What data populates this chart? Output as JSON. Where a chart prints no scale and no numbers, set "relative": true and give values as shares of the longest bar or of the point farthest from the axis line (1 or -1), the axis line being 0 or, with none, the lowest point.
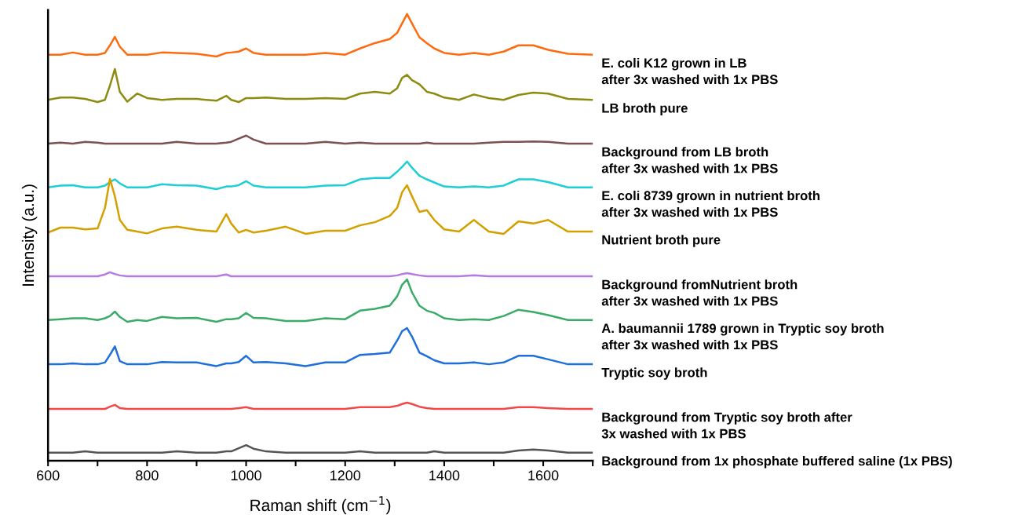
{
  "chart_data": {
    "type": "line",
    "relative": true,
    "xlabel": "Raman shift (cm$^{−1}$)",
    "ylabel": "Intensity (a.u.)",
    "xlim": [
      600,
      1700
    ],
    "xticks": [
      600,
      {
        "value": 700,
        "label": null
      },
      800,
      {
        "value": 900,
        "label": null
      },
      1000,
      {
        "value": 1100,
        "label": null
      },
      1200,
      {
        "value": 1300,
        "label": null
      },
      1400,
      {
        "value": 1500,
        "label": null
      },
      1600,
      {
        "value": 1700,
        "label": null
      }
    ],
    "x": [
      600,
      625,
      650,
      675,
      700,
      715,
      725,
      735,
      745,
      760,
      780,
      800,
      830,
      860,
      900,
      940,
      960,
      970,
      985,
      1000,
      1015,
      1040,
      1080,
      1120,
      1160,
      1200,
      1230,
      1260,
      1290,
      1305,
      1315,
      1325,
      1335,
      1350,
      1365,
      1380,
      1400,
      1430,
      1460,
      1490,
      1520,
      1550,
      1580,
      1610,
      1650,
      1700
    ],
    "series": [
      {
        "name": "E. coli K12 grown in LB\nafter 3x washed with 1x PBS",
        "color": "#ff6a0f",
        "values": [
          0.909,
          0.909,
          0.914,
          0.909,
          0.909,
          0.913,
          0.93,
          0.949,
          0.927,
          0.909,
          0.909,
          0.909,
          0.914,
          0.913,
          0.911,
          0.905,
          0.913,
          0.914,
          0.916,
          0.923,
          0.913,
          0.909,
          0.909,
          0.909,
          0.913,
          0.909,
          0.923,
          0.935,
          0.944,
          0.958,
          0.979,
          1.0,
          0.979,
          0.948,
          0.935,
          0.923,
          0.913,
          0.909,
          0.913,
          0.909,
          0.916,
          0.93,
          0.93,
          0.92,
          0.911,
          0.909
        ]
      },
      {
        "name": "LB broth pure",
        "color": "#8c8c10",
        "values": [
          0.808,
          0.813,
          0.813,
          0.81,
          0.803,
          0.808,
          0.84,
          0.877,
          0.826,
          0.804,
          0.822,
          0.812,
          0.808,
          0.81,
          0.81,
          0.806,
          0.817,
          0.808,
          0.803,
          0.812,
          0.812,
          0.813,
          0.81,
          0.81,
          0.812,
          0.81,
          0.822,
          0.826,
          0.822,
          0.834,
          0.857,
          0.864,
          0.852,
          0.843,
          0.826,
          0.822,
          0.813,
          0.808,
          0.82,
          0.812,
          0.808,
          0.819,
          0.824,
          0.822,
          0.81,
          0.808
        ]
      },
      {
        "name": "Background from LB broth\nafter 3x washed with 1x PBS",
        "color": "#7b5151",
        "values": [
          0.71,
          0.712,
          0.71,
          0.714,
          0.712,
          0.71,
          0.71,
          0.71,
          0.71,
          0.71,
          0.71,
          0.71,
          0.71,
          0.714,
          0.71,
          0.71,
          0.712,
          0.714,
          0.721,
          0.728,
          0.719,
          0.71,
          0.71,
          0.71,
          0.714,
          0.71,
          0.712,
          0.71,
          0.71,
          0.71,
          0.71,
          0.71,
          0.71,
          0.71,
          0.712,
          0.71,
          0.71,
          0.71,
          0.71,
          0.712,
          0.714,
          0.714,
          0.715,
          0.714,
          0.71,
          0.71
        ]
      },
      {
        "name": "E. coli 8739 grown in nutrient broth\nafter 3x washed with 1x PBS",
        "color": "#1ccfd6",
        "values": [
          0.612,
          0.616,
          0.617,
          0.612,
          0.612,
          0.616,
          0.624,
          0.63,
          0.621,
          0.612,
          0.612,
          0.612,
          0.619,
          0.617,
          0.616,
          0.608,
          0.614,
          0.614,
          0.617,
          0.626,
          0.616,
          0.612,
          0.612,
          0.612,
          0.616,
          0.617,
          0.63,
          0.633,
          0.633,
          0.647,
          0.658,
          0.67,
          0.656,
          0.638,
          0.63,
          0.623,
          0.614,
          0.612,
          0.614,
          0.612,
          0.616,
          0.63,
          0.63,
          0.624,
          0.612,
          0.612
        ]
      },
      {
        "name": "Nutrient broth pure",
        "color": "#d4a000",
        "values": [
          0.511,
          0.522,
          0.522,
          0.518,
          0.52,
          0.566,
          0.631,
          0.592,
          0.539,
          0.517,
          0.513,
          0.509,
          0.52,
          0.524,
          0.517,
          0.513,
          0.552,
          0.531,
          0.511,
          0.517,
          0.511,
          0.515,
          0.524,
          0.508,
          0.515,
          0.515,
          0.527,
          0.534,
          0.548,
          0.566,
          0.601,
          0.617,
          0.592,
          0.557,
          0.561,
          0.539,
          0.518,
          0.513,
          0.539,
          0.513,
          0.508,
          0.536,
          0.531,
          0.539,
          0.513,
          0.513
        ]
      },
      {
        "name": "Background fromNutrient broth\nafter 3x washed with 1x PBS",
        "color": "#b57be3",
        "values": [
          0.413,
          0.413,
          0.413,
          0.413,
          0.413,
          0.417,
          0.422,
          0.418,
          0.415,
          0.413,
          0.413,
          0.413,
          0.413,
          0.413,
          0.413,
          0.413,
          0.417,
          0.413,
          0.413,
          0.413,
          0.413,
          0.413,
          0.413,
          0.413,
          0.413,
          0.413,
          0.413,
          0.413,
          0.413,
          0.415,
          0.418,
          0.42,
          0.418,
          0.415,
          0.413,
          0.413,
          0.413,
          0.413,
          0.415,
          0.413,
          0.413,
          0.413,
          0.413,
          0.413,
          0.413,
          0.413
        ]
      },
      {
        "name": "A. baumannii 1789 grown in Tryptic soy broth\nafter 3x washed with 1x PBS",
        "color": "#3aab68",
        "values": [
          0.315,
          0.317,
          0.319,
          0.319,
          0.315,
          0.319,
          0.324,
          0.334,
          0.322,
          0.311,
          0.315,
          0.313,
          0.322,
          0.319,
          0.32,
          0.311,
          0.317,
          0.317,
          0.319,
          0.331,
          0.32,
          0.319,
          0.313,
          0.313,
          0.319,
          0.317,
          0.336,
          0.34,
          0.347,
          0.368,
          0.394,
          0.406,
          0.377,
          0.347,
          0.336,
          0.331,
          0.319,
          0.315,
          0.317,
          0.315,
          0.324,
          0.338,
          0.333,
          0.326,
          0.315,
          0.315
        ]
      },
      {
        "name": "Tryptic soy broth",
        "color": "#1f6fdb",
        "values": [
          0.216,
          0.216,
          0.218,
          0.216,
          0.216,
          0.22,
          0.237,
          0.256,
          0.223,
          0.216,
          0.216,
          0.216,
          0.221,
          0.22,
          0.22,
          0.212,
          0.218,
          0.218,
          0.221,
          0.235,
          0.22,
          0.221,
          0.218,
          0.212,
          0.22,
          0.22,
          0.237,
          0.239,
          0.242,
          0.269,
          0.29,
          0.297,
          0.278,
          0.242,
          0.234,
          0.225,
          0.218,
          0.218,
          0.22,
          0.216,
          0.22,
          0.235,
          0.235,
          0.227,
          0.216,
          0.216
        ]
      },
      {
        "name": "Background from Tryptic soy broth after\n3x washed with 1x PBS",
        "color": "#f44848",
        "values": [
          0.116,
          0.116,
          0.116,
          0.116,
          0.116,
          0.116,
          0.121,
          0.125,
          0.118,
          0.116,
          0.116,
          0.116,
          0.116,
          0.116,
          0.116,
          0.116,
          0.116,
          0.116,
          0.118,
          0.12,
          0.116,
          0.116,
          0.116,
          0.116,
          0.116,
          0.116,
          0.12,
          0.12,
          0.12,
          0.123,
          0.127,
          0.13,
          0.127,
          0.121,
          0.118,
          0.116,
          0.116,
          0.116,
          0.116,
          0.116,
          0.116,
          0.12,
          0.12,
          0.118,
          0.116,
          0.116
        ]
      },
      {
        "name": "Background from 1x phosphate buffered saline (1x PBS)",
        "color": "#555555",
        "values": [
          0.018,
          0.018,
          0.018,
          0.021,
          0.018,
          0.018,
          0.018,
          0.018,
          0.018,
          0.018,
          0.018,
          0.018,
          0.018,
          0.021,
          0.018,
          0.018,
          0.021,
          0.021,
          0.028,
          0.035,
          0.027,
          0.021,
          0.018,
          0.018,
          0.018,
          0.018,
          0.021,
          0.018,
          0.018,
          0.018,
          0.018,
          0.018,
          0.018,
          0.018,
          0.018,
          0.021,
          0.018,
          0.018,
          0.018,
          0.018,
          0.018,
          0.023,
          0.025,
          0.023,
          0.018,
          0.018
        ]
      }
    ]
  }
}
